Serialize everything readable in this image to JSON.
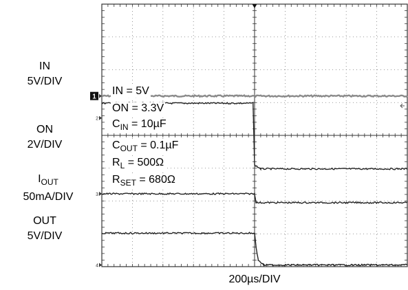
{
  "chart_data": {
    "type": "line",
    "xlabel": "200µs/DIV",
    "x_divisions": 10,
    "y_divisions": 8,
    "trigger_marker": "T",
    "channel_labels": [
      {
        "id": "in",
        "line1": "IN",
        "line2": "5V/DIV"
      },
      {
        "id": "on",
        "line1": "ON",
        "line2": "2V/DIV"
      },
      {
        "id": "iout",
        "line1_main": "I",
        "line1_sub": "OUT",
        "line2": "50mA/DIV"
      },
      {
        "id": "out",
        "line1": "OUT",
        "line2": "5V/DIV"
      }
    ],
    "channel_markers": [
      "1",
      "2",
      "3",
      "4"
    ],
    "conditions": [
      {
        "main": "IN = 5V",
        "sub": "",
        "tail": ""
      },
      {
        "main": "ON = 3.3V",
        "sub": "",
        "tail": ""
      },
      {
        "main": "C",
        "sub": "IN",
        "tail": " = 10µF"
      },
      {
        "main": "C",
        "sub": "OUT",
        "tail": " = 0.1µF"
      },
      {
        "main": "R",
        "sub": "L",
        "tail": " = 500Ω"
      },
      {
        "main": "R",
        "sub": "SET",
        "tail": " = 680Ω"
      }
    ],
    "series": [
      {
        "name": "IN",
        "values": [
          [
            0,
            5.2
          ],
          [
            10,
            5.2
          ]
        ]
      },
      {
        "name": "ON",
        "values": [
          [
            0,
            4.98
          ],
          [
            4.95,
            4.98
          ],
          [
            5.0,
            3.1
          ],
          [
            5.2,
            2.98
          ],
          [
            10,
            2.98
          ]
        ]
      },
      {
        "name": "IOUT",
        "values": [
          [
            0,
            2.22
          ],
          [
            5.0,
            2.22
          ],
          [
            5.05,
            1.95
          ],
          [
            10,
            1.95
          ]
        ]
      },
      {
        "name": "OUT",
        "values": [
          [
            0,
            1.02
          ],
          [
            5.0,
            1.02
          ],
          [
            5.05,
            0.6
          ],
          [
            5.12,
            0.2
          ],
          [
            5.3,
            0.05
          ],
          [
            10,
            0.05
          ]
        ]
      }
    ],
    "trace_colors": {
      "in": "#8a8a8a",
      "default": "#222222"
    }
  }
}
